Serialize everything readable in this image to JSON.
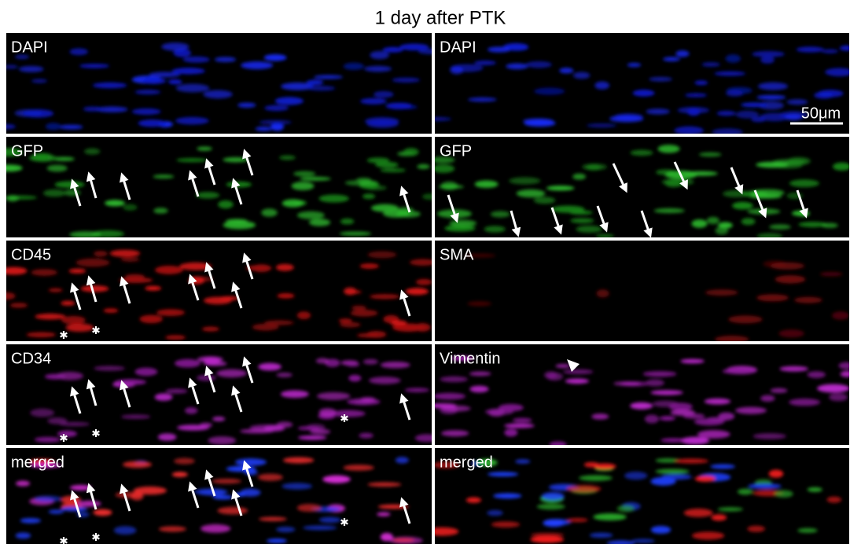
{
  "title": "1 day after PTK",
  "panels": [
    {
      "label": "DAPI"
    },
    {
      "label": "DAPI"
    },
    {
      "label": "GFP"
    },
    {
      "label": "GFP"
    },
    {
      "label": "CD45"
    },
    {
      "label": "SMA"
    },
    {
      "label": "CD34"
    },
    {
      "label": "Vimentin"
    },
    {
      "label": "merged"
    },
    {
      "label": "merged"
    }
  ],
  "scale_bar": "50μm"
}
